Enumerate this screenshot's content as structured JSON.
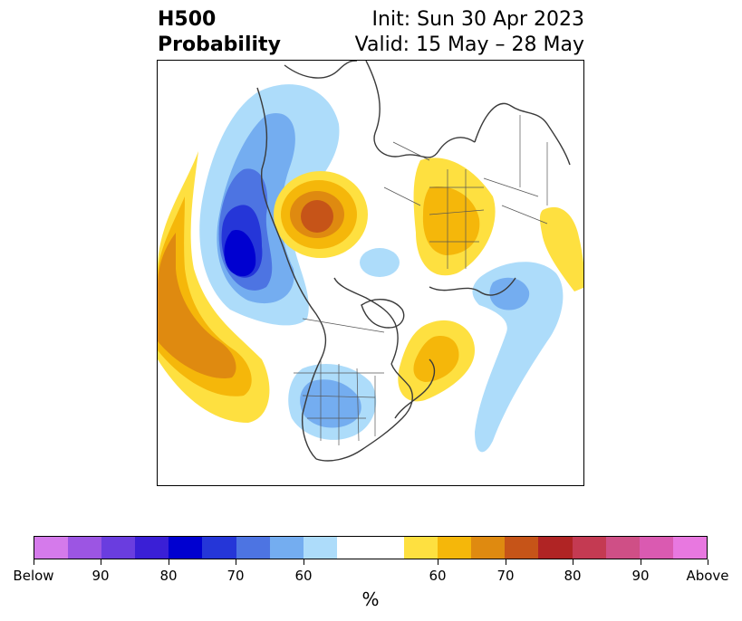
{
  "title": {
    "left_line1": "H500",
    "left_line2": "Probability",
    "right_line1": "Init: Sun 30 Apr 2023",
    "right_line2": "Valid: 15 May – 28 May"
  },
  "colorbar": {
    "unit": "%",
    "colors": [
      "#d57aeb",
      "#9c55e3",
      "#6a3ddf",
      "#3a1fd6",
      "#0000d0",
      "#2536d8",
      "#4d74e2",
      "#74adf0",
      "#addcfa",
      "#ffffff",
      "#ffffff",
      "#fee040",
      "#f5b70a",
      "#df8a10",
      "#c65418",
      "#b02424",
      "#c43a52",
      "#cf4f86",
      "#da5ab1",
      "#e878e0"
    ],
    "tick_labels": [
      "Below",
      "90",
      "80",
      "70",
      "60",
      "60",
      "70",
      "80",
      "90",
      "Above"
    ]
  },
  "map": {
    "projection": "north-polar-stereographic",
    "anomaly_colors": {
      "blue_60": "#addcfa",
      "blue_65": "#74adf0",
      "blue_70": "#4d74e2",
      "blue_75": "#2536d8",
      "blue_80": "#0000d0",
      "gold_60": "#fee040",
      "gold_65": "#f5b70a",
      "gold_70": "#df8a10",
      "gold_75": "#c65418"
    }
  }
}
